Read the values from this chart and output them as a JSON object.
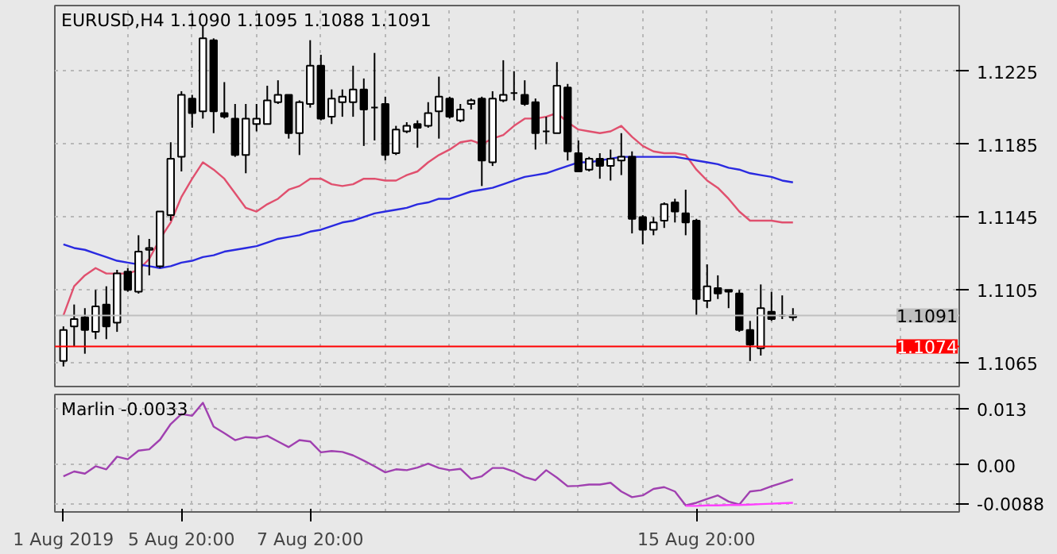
{
  "chart_data": [
    {
      "type": "candlestick",
      "title": "EURUSD,H4 1.1090 1.1095 1.1088 1.1091",
      "color": "#000000",
      "tick_labels": "y",
      "grid": true,
      "categories": [
        null,
        null,
        null,
        null,
        null,
        null,
        null,
        null,
        null,
        null,
        null,
        null,
        null,
        null,
        null,
        null,
        null,
        null,
        null,
        null,
        null,
        null,
        null,
        null,
        null,
        null,
        null,
        null,
        null,
        null,
        null,
        null,
        null,
        null,
        null,
        null,
        null,
        null,
        null,
        null,
        null,
        null,
        null,
        null,
        null,
        null,
        null,
        null,
        null,
        null,
        null,
        null,
        null,
        null,
        null,
        null,
        null,
        null,
        null,
        null,
        null,
        null,
        null,
        null,
        null,
        null,
        null,
        null,
        null
      ],
      "ylim": [
        1.1052,
        1.1261
      ],
      "yticks": [
        1.1065,
        1.1105,
        1.1145,
        1.1185,
        1.1225
      ],
      "ohlc": [
        [
          1.1066,
          1.1085,
          1.1063,
          1.1083
        ],
        [
          1.1085,
          1.1097,
          1.1074,
          1.1089
        ],
        [
          1.109,
          1.1095,
          1.107,
          1.1083
        ],
        [
          1.1082,
          1.1105,
          1.1078,
          1.1096
        ],
        [
          1.1097,
          1.1107,
          1.1078,
          1.1085
        ],
        [
          1.1087,
          1.1116,
          1.1082,
          1.1114
        ],
        [
          1.1115,
          1.1117,
          1.1104,
          1.1105
        ],
        [
          1.1104,
          1.1135,
          1.1103,
          1.1126
        ],
        [
          1.1127,
          1.1133,
          1.1113,
          1.1128
        ],
        [
          1.1118,
          1.1148,
          1.1117,
          1.1148
        ],
        [
          1.1146,
          1.1186,
          1.1143,
          1.1177
        ],
        [
          1.1178,
          1.1214,
          1.117,
          1.1212
        ],
        [
          1.121,
          1.1212,
          1.1194,
          1.1202
        ],
        [
          1.1203,
          1.125,
          1.1199,
          1.1243
        ],
        [
          1.1242,
          1.1243,
          1.1191,
          1.1203
        ],
        [
          1.1202,
          1.1219,
          1.1199,
          1.12
        ],
        [
          1.1199,
          1.1207,
          1.1178,
          1.1179
        ],
        [
          1.1179,
          1.1207,
          1.1169,
          1.1199
        ],
        [
          1.1196,
          1.1207,
          1.1192,
          1.1199
        ],
        [
          1.1196,
          1.1217,
          1.1196,
          1.1209
        ],
        [
          1.1208,
          1.122,
          1.1207,
          1.1212
        ],
        [
          1.1212,
          1.1212,
          1.1188,
          1.1191
        ],
        [
          1.1191,
          1.1209,
          1.1179,
          1.1208
        ],
        [
          1.1207,
          1.1242,
          1.1205,
          1.1228
        ],
        [
          1.1228,
          1.1234,
          1.1198,
          1.1199
        ],
        [
          1.12,
          1.1215,
          1.1196,
          1.121
        ],
        [
          1.1208,
          1.1215,
          1.12,
          1.1211
        ],
        [
          1.1208,
          1.1228,
          1.12,
          1.1215
        ],
        [
          1.1215,
          1.1221,
          1.1184,
          1.1204
        ],
        [
          1.1205,
          1.1235,
          1.1187,
          1.1205
        ],
        [
          1.1207,
          1.1211,
          1.1176,
          1.1179
        ],
        [
          1.118,
          1.1195,
          1.1179,
          1.1193
        ],
        [
          1.1192,
          1.1197,
          1.1191,
          1.1195
        ],
        [
          1.1196,
          1.1198,
          1.1183,
          1.1194
        ],
        [
          1.1195,
          1.1208,
          1.1194,
          1.1202
        ],
        [
          1.1203,
          1.1222,
          1.1188,
          1.1211
        ],
        [
          1.121,
          1.1211,
          1.1199,
          1.12
        ],
        [
          1.1198,
          1.1207,
          1.1197,
          1.1204
        ],
        [
          1.1207,
          1.121,
          1.1204,
          1.1209
        ],
        [
          1.121,
          1.1211,
          1.1162,
          1.1176
        ],
        [
          1.1175,
          1.1214,
          1.1173,
          1.121
        ],
        [
          1.1209,
          1.1231,
          1.1208,
          1.1212
        ],
        [
          1.1213,
          1.1225,
          1.1209,
          1.1213
        ],
        [
          1.1212,
          1.122,
          1.1206,
          1.1207
        ],
        [
          1.1208,
          1.121,
          1.1182,
          1.1191
        ],
        [
          1.1192,
          1.12,
          1.1185,
          1.1192
        ],
        [
          1.1191,
          1.123,
          1.1191,
          1.1217
        ],
        [
          1.1216,
          1.1218,
          1.1176,
          1.1181
        ],
        [
          1.118,
          1.1187,
          1.117,
          1.117
        ],
        [
          1.1171,
          1.1178,
          1.117,
          1.1177
        ],
        [
          1.1177,
          1.118,
          1.1166,
          1.1173
        ],
        [
          1.1173,
          1.1182,
          1.1165,
          1.1177
        ],
        [
          1.1176,
          1.1191,
          1.1168,
          1.1178
        ],
        [
          1.1178,
          1.1181,
          1.1136,
          1.1144
        ],
        [
          1.1145,
          1.1146,
          1.113,
          1.1138
        ],
        [
          1.1138,
          1.1145,
          1.1135,
          1.1142
        ],
        [
          1.1143,
          1.1153,
          1.1139,
          1.1152
        ],
        [
          1.1153,
          1.1155,
          1.1142,
          1.1148
        ],
        [
          1.1147,
          1.116,
          1.1135,
          1.1142
        ],
        [
          1.1143,
          1.1144,
          1.1091,
          1.11
        ],
        [
          1.1099,
          1.1119,
          1.1095,
          1.1107
        ],
        [
          1.1106,
          1.1113,
          1.11,
          1.1103
        ],
        [
          1.1105,
          1.1105,
          1.1095,
          1.1104
        ],
        [
          1.1103,
          1.1105,
          1.1082,
          1.1083
        ],
        [
          1.1083,
          1.1088,
          1.1066,
          1.1075
        ],
        [
          1.1073,
          1.1108,
          1.1069,
          1.1095
        ],
        [
          1.1093,
          1.1104,
          1.1088,
          1.1089
        ],
        [
          1.1091,
          1.1102,
          1.1089,
          1.1091
        ],
        [
          1.109,
          1.1095,
          1.1088,
          1.1091
        ]
      ],
      "colors": [
        "#ffffff",
        "#ffffff",
        "#000000",
        "#ffffff",
        "#000000",
        "#ffffff",
        "#000000",
        "#ffffff",
        "#ffffff",
        "#ffffff",
        "#ffffff",
        "#ffffff",
        "#000000",
        "#ffffff",
        "#000000",
        "#000000",
        "#000000",
        "#ffffff",
        "#ffffff",
        "#ffffff",
        "#ffffff",
        "#000000",
        "#ffffff",
        "#ffffff",
        "#000000",
        "#ffffff",
        "#ffffff",
        "#ffffff",
        "#000000",
        "#000000",
        "#000000",
        "#ffffff",
        "#ffffff",
        "#000000",
        "#ffffff",
        "#ffffff",
        "#000000",
        "#ffffff",
        "#ffffff",
        "#000000",
        "#ffffff",
        "#ffffff",
        "#000000",
        "#000000",
        "#000000",
        "#000000",
        "#ffffff",
        "#000000",
        "#000000",
        "#ffffff",
        "#000000",
        "#ffffff",
        "#ffffff",
        "#000000",
        "#000000",
        "#ffffff",
        "#ffffff",
        "#000000",
        "#000000",
        "#000000",
        "#ffffff",
        "#000000",
        "#000000",
        "#000000",
        "#000000",
        "#ffffff",
        "#000000",
        "#000000",
        "#ffffff"
      ],
      "series": [
        {
          "type": "line",
          "color": "#e0506e",
          "values": [
            1.1091,
            1.1107,
            1.1113,
            1.1117,
            1.1114,
            1.1114,
            1.1114,
            1.1116,
            1.1122,
            1.1133,
            1.1142,
            1.1156,
            1.1166,
            1.1175,
            1.1171,
            1.1166,
            1.1158,
            1.115,
            1.1148,
            1.1152,
            1.1155,
            1.116,
            1.1162,
            1.1166,
            1.1166,
            1.1163,
            1.1162,
            1.1163,
            1.1166,
            1.1166,
            1.1165,
            1.1165,
            1.1168,
            1.117,
            1.1175,
            1.1179,
            1.1182,
            1.1186,
            1.1187,
            1.1185,
            1.1188,
            1.119,
            1.1195,
            1.1199,
            1.1199,
            1.12,
            1.1202,
            1.1197,
            1.1193,
            1.1192,
            1.1191,
            1.1192,
            1.1195,
            1.1189,
            1.1184,
            1.1181,
            1.118,
            1.118,
            1.1179,
            1.1171,
            1.1165,
            1.1161,
            1.1155,
            1.1148,
            1.1143,
            1.1143,
            1.1143,
            1.1142,
            1.1142
          ]
        },
        {
          "type": "line",
          "color": "#2a2ae0",
          "values": [
            1.113,
            1.1128,
            1.1127,
            1.1125,
            1.1123,
            1.1121,
            1.112,
            1.1119,
            1.1118,
            1.1117,
            1.1118,
            1.112,
            1.1121,
            1.1123,
            1.1124,
            1.1126,
            1.1127,
            1.1128,
            1.1129,
            1.1131,
            1.1133,
            1.1134,
            1.1135,
            1.1137,
            1.1138,
            1.114,
            1.1142,
            1.1143,
            1.1145,
            1.1147,
            1.1148,
            1.1149,
            1.115,
            1.1152,
            1.1153,
            1.1155,
            1.1155,
            1.1157,
            1.1159,
            1.116,
            1.1161,
            1.1163,
            1.1165,
            1.1167,
            1.1168,
            1.1169,
            1.1171,
            1.1173,
            1.1175,
            1.1175,
            1.1176,
            1.1177,
            1.1178,
            1.1178,
            1.1178,
            1.1178,
            1.1178,
            1.1178,
            1.1177,
            1.1176,
            1.1175,
            1.1174,
            1.1172,
            1.1171,
            1.1169,
            1.1168,
            1.1167,
            1.1165,
            1.1164
          ]
        }
      ],
      "ref_lines": [
        {
          "axis": "y",
          "value": 1.1091,
          "label": "1.1091",
          "color": "#c0c0c0"
        },
        {
          "axis": "y",
          "value": 1.1074,
          "label": "1.1074",
          "color": "#ff0000"
        }
      ]
    },
    {
      "type": "line",
      "title": "Marlin -0.0033",
      "grid": true,
      "categories": [
        "1 Aug 2019",
        null,
        null,
        null,
        null,
        null,
        null,
        null,
        null,
        null,
        null,
        "5 Aug 20:00",
        null,
        null,
        null,
        null,
        null,
        null,
        null,
        null,
        null,
        null,
        null,
        "7 Aug 20:00",
        null,
        null,
        null,
        null,
        null,
        null,
        null,
        null,
        null,
        null,
        null,
        null,
        null,
        null,
        null,
        null,
        null,
        null,
        null,
        null,
        null,
        null,
        null,
        null,
        null,
        null,
        null,
        null,
        null,
        null,
        null,
        null,
        null,
        null,
        null,
        "15 Aug 20:00",
        null,
        null,
        null,
        null,
        null,
        null,
        null,
        null,
        null
      ],
      "ylim": [
        -0.0108,
        0.0162
      ],
      "yticks": [
        -0.0088,
        {
          "value": 0,
          "label": "0.00"
        },
        0.013
      ],
      "series": [
        {
          "color": "#a040b0",
          "values": [
            -0.0026,
            -0.0015,
            -0.002,
            -0.0003,
            -0.001,
            0.0019,
            0.0013,
            0.0033,
            0.0036,
            0.0058,
            0.0094,
            0.0117,
            0.0113,
            0.0143,
            0.0088,
            0.0073,
            0.0057,
            0.0064,
            0.0062,
            0.0067,
            0.0054,
            0.0041,
            0.0057,
            0.0054,
            0.0029,
            0.0032,
            0.003,
            0.0022,
            0.001,
            -0.0003,
            -0.0017,
            -0.001,
            -0.0012,
            -0.0006,
            0.0003,
            -0.0007,
            -0.0012,
            -0.0009,
            -0.0032,
            -0.0026,
            -0.0007,
            -0.0007,
            -0.0015,
            -0.0028,
            -0.0035,
            -0.0012,
            -0.0029,
            -0.0049,
            -0.0048,
            -0.0045,
            -0.0045,
            -0.0041,
            -0.0061,
            -0.0074,
            -0.007,
            -0.0055,
            -0.0051,
            -0.0061,
            -0.0093,
            -0.0087,
            -0.0078,
            -0.007,
            -0.0084,
            -0.0091,
            -0.0061,
            -0.0058,
            -0.0049,
            -0.0041,
            -0.0033
          ]
        },
        {
          "color": "#ff40ff",
          "values": [
            null,
            null,
            null,
            null,
            null,
            null,
            null,
            null,
            null,
            null,
            null,
            null,
            null,
            null,
            null,
            null,
            null,
            null,
            null,
            null,
            null,
            null,
            null,
            null,
            null,
            null,
            null,
            null,
            null,
            null,
            null,
            null,
            null,
            null,
            null,
            null,
            null,
            null,
            null,
            null,
            null,
            null,
            null,
            null,
            null,
            null,
            null,
            null,
            null,
            null,
            null,
            null,
            null,
            null,
            null,
            null,
            null,
            null,
            -0.0094,
            -0.0094,
            -0.0093,
            -0.0093,
            -0.0092,
            -0.0092,
            -0.0091,
            -0.009,
            -0.0089,
            -0.0088,
            -0.0087
          ]
        }
      ]
    }
  ]
}
